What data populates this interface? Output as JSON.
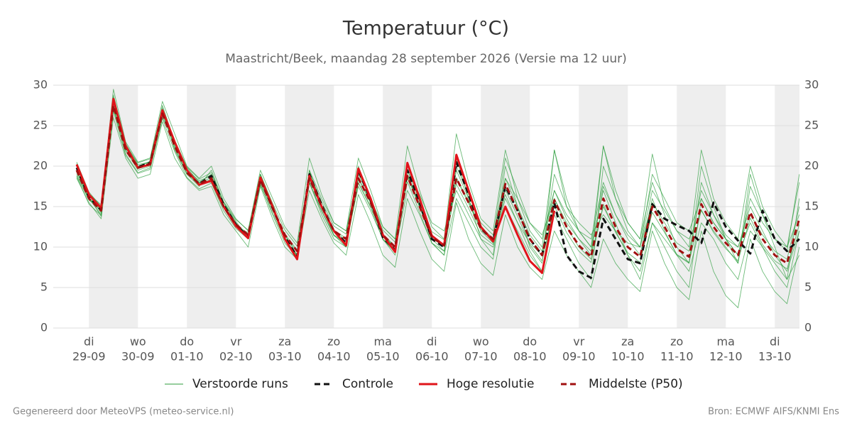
{
  "chart_data": {
    "type": "line",
    "title": "Temperatuur (°C)",
    "subtitle": "Maastricht/Beek, maandag 28 september 2026 (Versie ma 12 uur)",
    "footer_left": "Gegenereerd door MeteoVPS (meteo-service.nl)",
    "footer_right": "Bron: ECMWF AIFS/KNMI Ens",
    "categories": [
      null,
      "29-09",
      null,
      null,
      null,
      "30-09",
      null,
      null,
      null,
      "01-10",
      null,
      null,
      null,
      "02-10",
      null,
      null,
      null,
      "03-10",
      null,
      null,
      null,
      "04-10",
      null,
      null,
      null,
      "05-10",
      null,
      null,
      null,
      "06-10",
      null,
      null,
      null,
      "07-10",
      null,
      null,
      null,
      "08-10",
      null,
      null,
      null,
      "09-10",
      null,
      null,
      null,
      "10-10",
      null,
      null,
      null,
      "11-10",
      null,
      null,
      null,
      "12-10",
      null,
      null,
      null,
      "13-10",
      null,
      null
    ],
    "weekdays": [
      null,
      "di",
      null,
      null,
      null,
      "wo",
      null,
      null,
      null,
      "do",
      null,
      null,
      null,
      "vr",
      null,
      null,
      null,
      "za",
      null,
      null,
      null,
      "zo",
      null,
      null,
      null,
      "ma",
      null,
      null,
      null,
      "di",
      null,
      null,
      null,
      "wo",
      null,
      null,
      null,
      "do",
      null,
      null,
      null,
      "vr",
      null,
      null,
      null,
      "za",
      null,
      null,
      null,
      "zo",
      null,
      null,
      null,
      "ma",
      null,
      null,
      null,
      "di",
      null,
      null
    ],
    "shade_alternate_days": true,
    "ylim": [
      0,
      30
    ],
    "yticks": [
      0,
      5,
      10,
      15,
      20,
      25,
      30
    ],
    "grid": true,
    "right_axis": true,
    "series": [
      {
        "name": "Verstoorde runs",
        "color": "#2e9e3e",
        "runs": [
          [
            20.5,
            16.8,
            15,
            29.5,
            23,
            20.5,
            21,
            28,
            24,
            20,
            18.5,
            20,
            16,
            13.5,
            12,
            19.5,
            16,
            12.5,
            10.5,
            21,
            16.5,
            13,
            12,
            21,
            17,
            12.5,
            11,
            22.5,
            17,
            12.5,
            11,
            24,
            18,
            13.5,
            12,
            22,
            16,
            12,
            10,
            22,
            15,
            12,
            10,
            22.5,
            16,
            13,
            11,
            21.5,
            15,
            12,
            10,
            22,
            16,
            13,
            11,
            20,
            15,
            12,
            10,
            18
          ],
          [
            18.5,
            15.5,
            13.5,
            26,
            21,
            18.5,
            19,
            25.5,
            21,
            18.5,
            17,
            17.5,
            14,
            12,
            10,
            17.5,
            13.5,
            10,
            8.5,
            17,
            13.5,
            10.5,
            9,
            16.5,
            13,
            9,
            7.5,
            16,
            12,
            8.5,
            7,
            15.5,
            11,
            8,
            6.5,
            14,
            10,
            7.5,
            6,
            12,
            9,
            7,
            5,
            11,
            8,
            6,
            4.5,
            12,
            8,
            5,
            3.5,
            12,
            7,
            4,
            2.5,
            11,
            7,
            4.5,
            3,
            10
          ],
          [
            19,
            16,
            14,
            27,
            22.5,
            20,
            20.5,
            27,
            22,
            19,
            18,
            19,
            15.5,
            13,
            11,
            19,
            15,
            11,
            9,
            19.5,
            15,
            11.5,
            10,
            20,
            16,
            11,
            9,
            20.5,
            15.5,
            10.5,
            9,
            21,
            16,
            11,
            9,
            20,
            15,
            10,
            8,
            22,
            16,
            12,
            10,
            17,
            13,
            9,
            6,
            13,
            11,
            9,
            8,
            20,
            15,
            11,
            9,
            16,
            13,
            11,
            10,
            14
          ],
          [
            19.2,
            16.5,
            14.2,
            28,
            22,
            19.5,
            20,
            26,
            23,
            19.8,
            18,
            18,
            15,
            12.5,
            11.5,
            18,
            14.5,
            11.5,
            9,
            18,
            14.5,
            11.5,
            10.5,
            17.5,
            14.5,
            11,
            9.5,
            17,
            14,
            10.5,
            9,
            16,
            13,
            10,
            8.5,
            18.5,
            16,
            13,
            11,
            17,
            14,
            12,
            11,
            18,
            14,
            11,
            9,
            16,
            12,
            9,
            7,
            13,
            11,
            8,
            6,
            12,
            10,
            8,
            6,
            9
          ],
          [
            18.8,
            15.8,
            14.8,
            27.2,
            21.5,
            19.2,
            19.8,
            26.8,
            22.2,
            19,
            17.5,
            19.5,
            15.5,
            13.2,
            11,
            17.8,
            14,
            10.5,
            8.8,
            19.5,
            16,
            13,
            12,
            19,
            16,
            12.5,
            11,
            19.5,
            16.5,
            13,
            12,
            17,
            14,
            11,
            10,
            16,
            13,
            10.5,
            9,
            19,
            15,
            13,
            11.5,
            14,
            12,
            10.5,
            10,
            17,
            14.5,
            12,
            11,
            14.5,
            12,
            10,
            8,
            17.5,
            14,
            11,
            9.5,
            19
          ],
          [
            20,
            16.2,
            13.8,
            28.8,
            22.8,
            20.2,
            20.5,
            27.5,
            23,
            19.5,
            18.2,
            18.8,
            15.2,
            12.5,
            11.8,
            19,
            15,
            11,
            8.8,
            18,
            14,
            11,
            10,
            18,
            15,
            11.5,
            10,
            19,
            15,
            11,
            9.5,
            19.5,
            16,
            12,
            10.5,
            16.5,
            13,
            9.5,
            7,
            14,
            11,
            8,
            6,
            20,
            16,
            12,
            10,
            19,
            16,
            13,
            12,
            16,
            13,
            11,
            10,
            15,
            12,
            9,
            7,
            12
          ],
          [
            19.6,
            16.1,
            14.6,
            27.8,
            22.2,
            20,
            20.6,
            26.6,
            22.6,
            19.4,
            17.9,
            18.6,
            15.1,
            12.9,
            11.6,
            18.4,
            14.9,
            11.6,
            9.6,
            18.6,
            15.1,
            12.1,
            11.1,
            18.6,
            15.6,
            11.6,
            10.1,
            18.9,
            15.1,
            11.3,
            10.3,
            18.6,
            15.6,
            12.4,
            11.1,
            21,
            17,
            13,
            11.5,
            16,
            13,
            11,
            9,
            15,
            12,
            9,
            7,
            13,
            10,
            7,
            5,
            16,
            13,
            11,
            9,
            13,
            10,
            7,
            5,
            12
          ],
          [
            19.4,
            15.9,
            14.4,
            27.4,
            21.9,
            19.7,
            20.2,
            26.4,
            22.4,
            19.1,
            17.7,
            18.4,
            14.9,
            12.7,
            11.4,
            18.2,
            14.7,
            11.4,
            9.4,
            18.4,
            14.9,
            11.9,
            10.9,
            18.4,
            15.4,
            11.4,
            9.9,
            18.7,
            14.9,
            11.1,
            10.1,
            18.4,
            15.4,
            12.2,
            10.9,
            15,
            12,
            9,
            7,
            16,
            12.5,
            10,
            8.5,
            22.5,
            17,
            13,
            11,
            18,
            14,
            10,
            8,
            18,
            14,
            11,
            8,
            19,
            14,
            10,
            6,
            16
          ],
          [
            20.3,
            16.6,
            15.2,
            28.5,
            22.6,
            20.4,
            20.9,
            27.2,
            23.2,
            19.9,
            18.4,
            19.2,
            15.6,
            13.4,
            12.1,
            19,
            15.4,
            12.1,
            10.1,
            19.2,
            15.6,
            12.6,
            11.6,
            19.2,
            16.1,
            12.1,
            10.6,
            19.5,
            15.7,
            11.9,
            10.9,
            20,
            16.5,
            13,
            11.5,
            18.5,
            15,
            11.5,
            9.5,
            17,
            13.5,
            11,
            9.5,
            17.5,
            14,
            11.5,
            10,
            15.5,
            13,
            10.5,
            9.5,
            17,
            14,
            11.5,
            10,
            14,
            11.5,
            9.5,
            8.5,
            15
          ],
          [
            18.7,
            15.3,
            13.9,
            26.8,
            21.3,
            19.1,
            19.6,
            25.9,
            21.8,
            18.6,
            17.2,
            17.9,
            14.5,
            12.3,
            11,
            17.7,
            14.2,
            10.9,
            8.9,
            17.9,
            14.4,
            11.4,
            10.4,
            17.9,
            14.9,
            10.9,
            9.4,
            18.1,
            14.3,
            10.5,
            9.5,
            17.8,
            14.8,
            11.5,
            10.3,
            17.1,
            13.8,
            10.3,
            8.3,
            15.1,
            11.8,
            9.5,
            8.1,
            15.3,
            11.8,
            9.3,
            8.1,
            14.3,
            11.8,
            9.1,
            8.1,
            14.6,
            11.8,
            9.8,
            8.3,
            13.6,
            10.3,
            8.3,
            7.3,
            12.8
          ]
        ]
      },
      {
        "name": "Controle",
        "color": "#111111",
        "dash": true,
        "values": [
          19.8,
          16.2,
          14.6,
          28,
          22.3,
          19.9,
          20.4,
          26.7,
          22.8,
          19.3,
          17.8,
          18.8,
          15.2,
          12.8,
          11.2,
          18.5,
          14.8,
          11.2,
          8.8,
          19,
          15.2,
          12,
          10.5,
          19.5,
          15.8,
          11.2,
          9.6,
          19.5,
          15.5,
          11,
          10,
          20.5,
          16.5,
          12.3,
          10.8,
          17.5,
          14.5,
          11,
          9,
          15.5,
          9,
          7,
          6.2,
          13.5,
          11,
          8.5,
          8,
          15.3,
          13.5,
          12.7,
          12,
          10.5,
          15.5,
          12.5,
          10.8,
          9.2,
          14.5,
          11,
          9.5,
          11
        ]
      },
      {
        "name": "Hoge resolutie",
        "color": "#e0141a",
        "dash": false,
        "values": [
          20.2,
          16.5,
          14.8,
          28.3,
          22.5,
          19.8,
          20.2,
          26.9,
          23,
          19.5,
          17.7,
          18.2,
          15,
          12.6,
          11.1,
          18.6,
          15,
          11,
          8.5,
          18.8,
          15,
          12,
          10.2,
          19.7,
          16,
          11.5,
          9.4,
          20.4,
          16,
          11.4,
          10.2,
          21.4,
          17,
          12.5,
          10.7,
          15,
          11.5,
          8.3,
          6.8,
          14.5,
          null,
          null,
          null,
          null,
          null,
          null,
          null,
          null,
          null,
          null,
          null,
          null,
          null,
          null,
          null,
          null,
          null,
          null,
          null,
          null
        ]
      },
      {
        "name": "Middelste (P50)",
        "color": "#a01010",
        "dash": true,
        "values": [
          19.5,
          16,
          14.5,
          27.5,
          22,
          19.8,
          20.3,
          26.5,
          22.5,
          19.2,
          17.8,
          18.5,
          15,
          12.8,
          11.5,
          18.3,
          14.8,
          11.5,
          9.5,
          18.5,
          15,
          12,
          11,
          18.5,
          15.5,
          11.5,
          10,
          18.8,
          15,
          11.2,
          10.2,
          18.5,
          15.5,
          12.3,
          11,
          17.8,
          14.5,
          11,
          9,
          15.8,
          12.5,
          10.2,
          8.8,
          16,
          12.5,
          10,
          8.8,
          15,
          12.5,
          9.8,
          8.8,
          15.3,
          12.5,
          10.5,
          9,
          14.3,
          11,
          9,
          8,
          13.5
        ]
      }
    ]
  }
}
